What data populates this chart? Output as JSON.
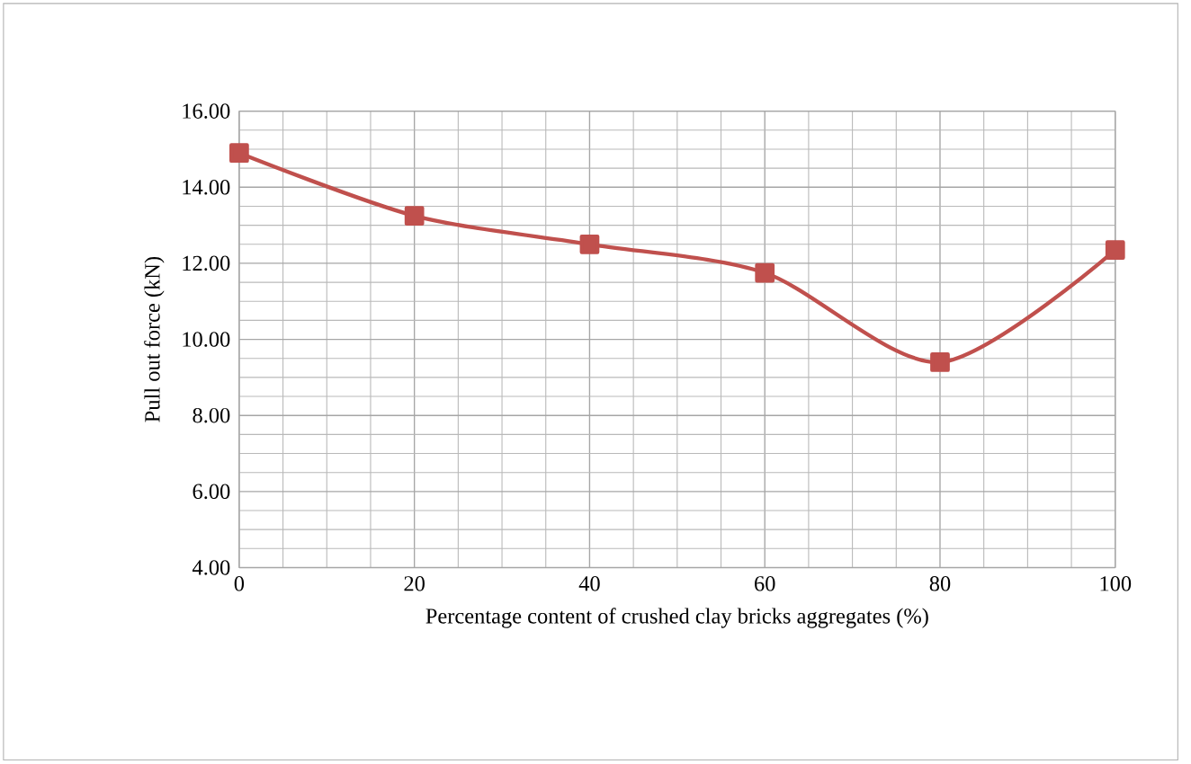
{
  "chart_data": {
    "type": "line",
    "xlabel": "Percentage content of crushed clay bricks aggregates (%)",
    "ylabel": "Pull out force (kN)",
    "x": [
      0,
      20,
      40,
      60,
      80,
      100
    ],
    "series": [
      {
        "color": "#c0504d",
        "values": [
          14.9,
          13.25,
          12.5,
          11.75,
          9.4,
          12.35
        ]
      }
    ],
    "xlim": [
      0,
      100
    ],
    "xticks": [
      0,
      20,
      40,
      60,
      80,
      100
    ],
    "ylim": [
      4,
      16
    ],
    "yticks": [
      {
        "value": 4,
        "label": "4.00"
      },
      {
        "value": 6,
        "label": "6.00"
      },
      {
        "value": 8,
        "label": "8.00"
      },
      {
        "value": 10,
        "label": "10.00"
      },
      {
        "value": 12,
        "label": "12.00"
      },
      {
        "value": 14,
        "label": "14.00"
      },
      {
        "value": 16,
        "label": "16.00"
      }
    ],
    "grid": true,
    "marker": "square",
    "line_style": "solid"
  }
}
